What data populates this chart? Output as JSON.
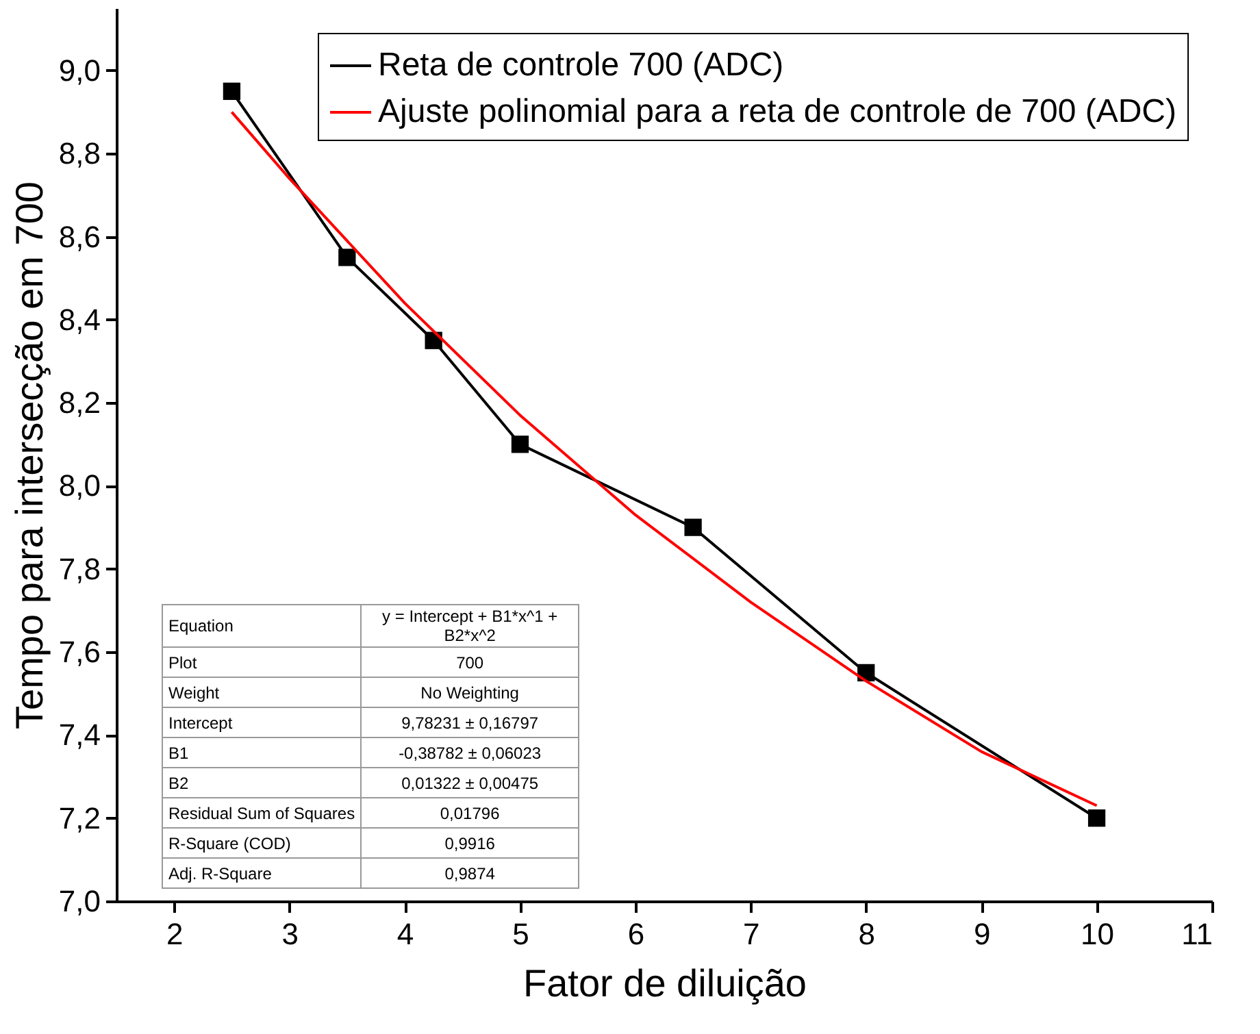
{
  "chart_data": {
    "type": "line",
    "xlabel": "Fator de diluição",
    "ylabel": "Tempo para intersecção em  700",
    "series": [
      {
        "name": "Reta de controle 700 (ADC)",
        "color": "#000000",
        "marker": "square",
        "x": [
          2.5,
          3.5,
          4.25,
          5,
          6.5,
          8,
          10
        ],
        "values": [
          8.95,
          8.55,
          8.35,
          8.1,
          7.9,
          7.55,
          7.2
        ]
      },
      {
        "name": "Ajuste polinomial para a reta de controle de 700 (ADC)",
        "color": "#ff0000",
        "marker": "none",
        "x": [
          2.5,
          3,
          4,
          5,
          6,
          7,
          8,
          9,
          10
        ],
        "values": [
          8.9,
          8.74,
          8.44,
          8.17,
          7.93,
          7.72,
          7.53,
          7.36,
          7.23
        ]
      }
    ],
    "xlim": [
      1.5,
      11
    ],
    "xticks": [
      2,
      3,
      4,
      5,
      6,
      7,
      8,
      9,
      10,
      11
    ],
    "ylim": [
      7.0,
      9.15
    ],
    "yticks": [
      {
        "value": 7.0,
        "label": "7,0"
      },
      {
        "value": 7.2,
        "label": "7,2"
      },
      {
        "value": 7.4,
        "label": "7,4"
      },
      {
        "value": 7.6,
        "label": "7,6"
      },
      {
        "value": 7.8,
        "label": "7,8"
      },
      {
        "value": 8.0,
        "label": "8,0"
      },
      {
        "value": 8.2,
        "label": "8,2"
      },
      {
        "value": 8.4,
        "label": "8,4"
      },
      {
        "value": 8.6,
        "label": "8,6"
      },
      {
        "value": 8.8,
        "label": "8,8"
      },
      {
        "value": 9.0,
        "label": "9,0"
      }
    ],
    "grid": false,
    "legend": "top right",
    "annotations": [
      "Equation",
      "y = Intercept + B1*x^1 + B2*x^2",
      "Plot",
      "700",
      "Weight",
      "No Weighting",
      "Intercept",
      "9,78231 ± 0,16797",
      "B1",
      "-0,38782 ± 0,06023",
      "B2",
      "0,01322 ± 0,00475",
      "Residual Sum of Squares",
      "0,01796",
      "R-Square (COD)",
      "0,9916",
      "Adj. R-Square",
      "0,9874"
    ]
  }
}
